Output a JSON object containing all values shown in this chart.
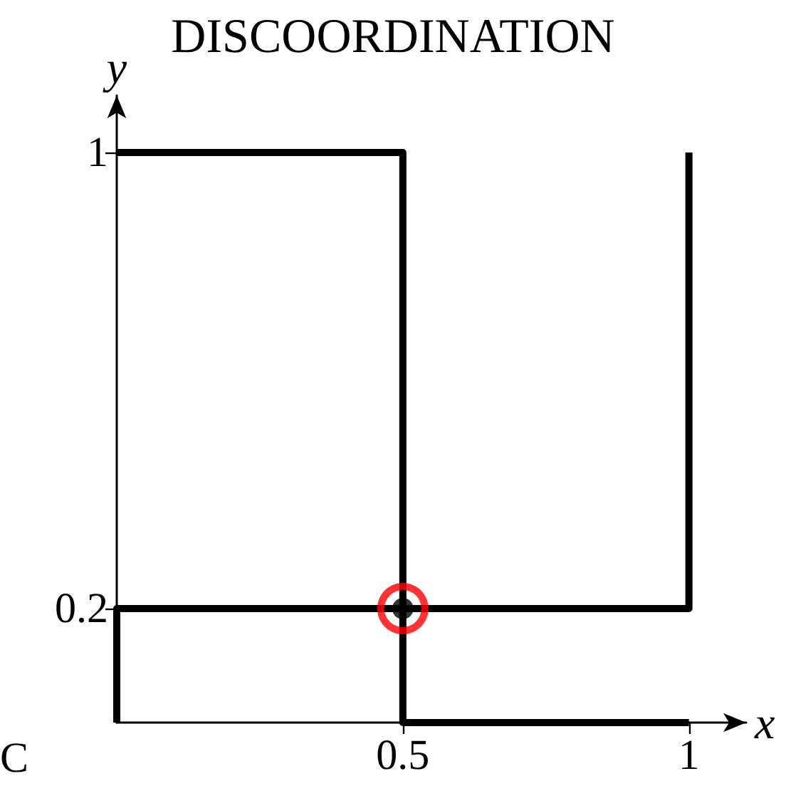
{
  "chart_data": {
    "type": "line",
    "title": "DISCOORDINATION",
    "xlabel": "x",
    "ylabel": "y",
    "xlim": [
      0,
      1.1
    ],
    "ylim": [
      0,
      1.1
    ],
    "xticks": [
      0.5,
      1
    ],
    "yticks": [
      0.2,
      1
    ],
    "marker": "none",
    "line_style": "solid",
    "annotations": [
      "C"
    ],
    "series": [
      {
        "x": [
          0,
          0.5,
          0.5,
          1
        ],
        "values": [
          1,
          1,
          0,
          0
        ],
        "color": "#000000"
      },
      {
        "x": [
          0,
          0,
          1,
          1
        ],
        "values": [
          0,
          0.2,
          0.2,
          1
        ],
        "color": "#000000"
      },
      {
        "type": "scatter",
        "x": [
          0.5
        ],
        "values": [
          0.2
        ],
        "color": "#ff0000",
        "marker": "circle"
      },
      {
        "type": "scatter",
        "x": [
          0.5
        ],
        "values": [
          0.2
        ],
        "color": "#000000",
        "marker": "circle"
      }
    ]
  }
}
